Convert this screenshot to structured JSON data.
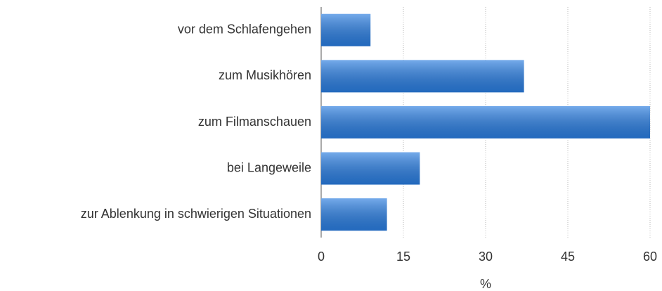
{
  "chart_data": {
    "type": "bar",
    "orientation": "horizontal",
    "categories": [
      "vor dem Schlafengehen",
      "zum Musikhören",
      "zum Filmanschauen",
      "bei Langeweile",
      "zur Ablenkung in schwierigen Situationen"
    ],
    "values": [
      9,
      37,
      60,
      18,
      12
    ],
    "color": "#2a7de0",
    "xlabel": "%",
    "xlim": [
      0,
      60
    ],
    "xticks": [
      0,
      15,
      30,
      45,
      60
    ],
    "grid": true
  }
}
